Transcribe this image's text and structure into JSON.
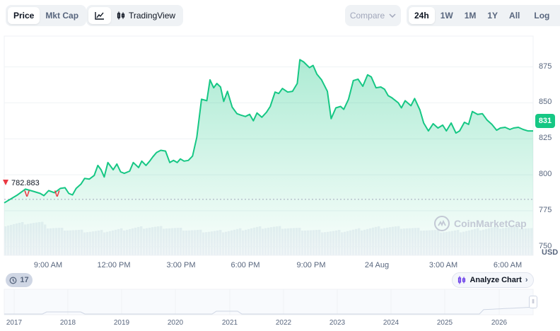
{
  "toolbar": {
    "type_tabs": [
      {
        "label": "Price",
        "active": true
      },
      {
        "label": "Mkt Cap",
        "active": false
      }
    ],
    "mode_tabs": [
      {
        "icon": "line-chart-icon",
        "active": true
      },
      {
        "label": "TradingView",
        "icon": "candlestick-icon",
        "active": false
      }
    ],
    "compare": {
      "label": "Compare",
      "icon": "chevron-down-icon"
    },
    "ranges": [
      {
        "label": "24h",
        "active": true
      },
      {
        "label": "1W",
        "active": false
      },
      {
        "label": "1M",
        "active": false
      },
      {
        "label": "1Y",
        "active": false
      },
      {
        "label": "All",
        "active": false
      }
    ],
    "scale_label": "Log",
    "more_icon": "calendar-icon"
  },
  "chart_data": {
    "type": "area",
    "currency": "USD",
    "current_price": "831",
    "reference_price": "782.883",
    "y_ticks": [
      750,
      775,
      800,
      825,
      850,
      875
    ],
    "ylim": [
      744,
      892
    ],
    "x_ticks": [
      "9:00 AM",
      "12:00 PM",
      "3:00 PM",
      "6:00 PM",
      "9:00 PM",
      "24 Aug",
      "3:00 AM",
      "6:00 AM"
    ],
    "xlim": [
      0,
      100
    ],
    "series": [
      {
        "x": [
          0,
          2.5,
          4,
          5.5,
          6.8,
          7.5,
          8.4,
          9.5,
          10.6,
          11.5,
          12.2,
          12.9,
          13.6,
          14.5,
          15.2,
          16.1,
          17,
          17.7,
          18.3,
          18.9,
          19.6,
          20.6,
          21.3,
          22,
          22.7,
          23.7,
          24.4,
          25.4,
          26,
          26.8,
          27.5,
          28.1,
          28.8,
          29.6,
          30.5,
          31.3,
          32,
          32.7,
          33.3,
          34,
          34.8,
          35.6,
          36.4,
          37.3,
          38.3,
          38.9,
          39.6,
          40.2,
          40.9,
          41.5,
          42.2,
          43.1,
          44,
          44.7,
          45.6,
          46.4,
          47.1,
          47.8,
          48.7,
          49.6,
          50.3,
          51.2,
          51.9,
          52.6,
          53.6,
          54.5,
          55.4,
          55.9,
          56.6,
          57.7,
          58.4,
          59.1,
          60,
          61.1,
          61.8,
          62.7,
          63.6,
          64.2,
          65.1,
          66,
          66.9,
          67.8,
          68.7,
          69.4,
          70.3,
          71.2,
          71.9,
          72.6,
          73.3,
          74.5,
          75.1,
          75.8,
          76.9,
          77.6,
          78.6,
          79.3,
          80.2,
          81.1,
          82,
          82.9,
          83.6,
          84.5,
          85.4,
          86.1,
          87,
          87.8,
          88.5,
          89.5,
          90.4,
          91.3,
          92.2,
          93.1,
          93.8,
          94.7,
          95.6,
          96.3,
          97.2,
          98.1,
          99,
          100
        ],
        "values": [
          780.5,
          786,
          790,
          788.5,
          787,
          785.5,
          789,
          787.5,
          790.5,
          791,
          787,
          786,
          790.5,
          793.5,
          797.5,
          797,
          799.5,
          806.5,
          803.5,
          798.5,
          808.5,
          803.5,
          807.5,
          802,
          801,
          802.5,
          808.5,
          805,
          809.5,
          806.5,
          809.5,
          812.5,
          815.5,
          817,
          816.5,
          808.5,
          810,
          808.5,
          811,
          809.5,
          810,
          813,
          826,
          852.5,
          851.5,
          866,
          860.5,
          863.5,
          861,
          851,
          858,
          847,
          842.5,
          841.5,
          840.5,
          842,
          837.5,
          843,
          840,
          843.5,
          847.5,
          857.5,
          856.5,
          860,
          857.5,
          858,
          863.5,
          880,
          878.5,
          874.5,
          876,
          870,
          866,
          858,
          839,
          846.5,
          847.5,
          845.5,
          852.5,
          865.5,
          866.5,
          861.5,
          869.5,
          868,
          860.5,
          861,
          859.5,
          855,
          853.5,
          850,
          846.5,
          851.5,
          848,
          853,
          845,
          836,
          830.5,
          835.5,
          832.5,
          834.5,
          830.5,
          836,
          829,
          830.5,
          836.5,
          835,
          844,
          842,
          842.5,
          838,
          835,
          831,
          832.5,
          833,
          831.5,
          832.5,
          833,
          831.5,
          830.5,
          830.5
        ]
      }
    ],
    "markers": [
      {
        "x": 4.3,
        "label": "V"
      },
      {
        "x": 10.0,
        "label": "V"
      }
    ]
  },
  "watermark": {
    "text": "CoinMarketCap",
    "icon": "coinmarketcap-logo"
  },
  "events": {
    "icon": "history-icon",
    "count": "17"
  },
  "analyze": {
    "label": "Analyze Chart",
    "icon": "candlestick-icon",
    "chevron": "chevron-right-icon"
  },
  "navigator": {
    "labels": [
      "2017",
      "2018",
      "2019",
      "2020",
      "2021",
      "2022",
      "2023",
      "2024",
      "2025",
      "2026"
    ],
    "handle_icon": "grip-icon"
  }
}
